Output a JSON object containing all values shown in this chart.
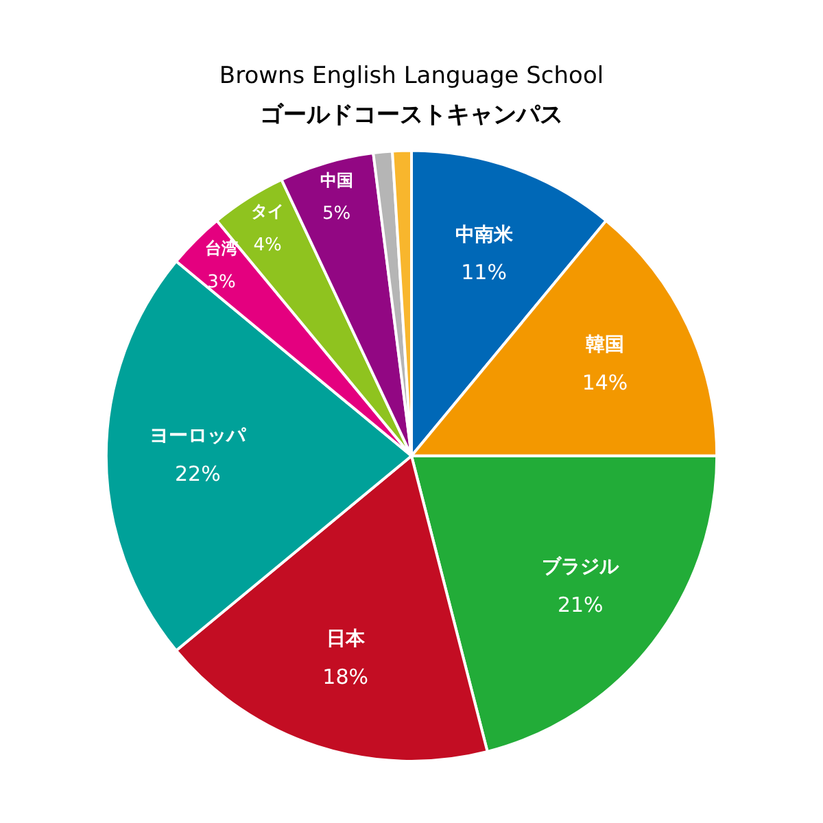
{
  "chart_data": {
    "type": "pie",
    "title": "Browns English Language School",
    "subtitle": "ゴールドコーストキャンパス",
    "categories": [
      "中南米",
      "韓国",
      "ブラジル",
      "日本",
      "ヨーロッパ",
      "台湾",
      "タイ",
      "中国",
      null,
      null
    ],
    "values": [
      11,
      14,
      21,
      18,
      22,
      3,
      4,
      5,
      1,
      1
    ],
    "value_labels": [
      "11%",
      "14%",
      "21%",
      "18%",
      "22%",
      "3%",
      "4%",
      "5%",
      null,
      null
    ],
    "colors": [
      "#0068b7",
      "#f39800",
      "#22ac38",
      "#c30d23",
      "#00a199",
      "#e4007f",
      "#8fc31f",
      "#920783",
      "#b5b5b5",
      "#f8b62d"
    ],
    "legend": false
  }
}
